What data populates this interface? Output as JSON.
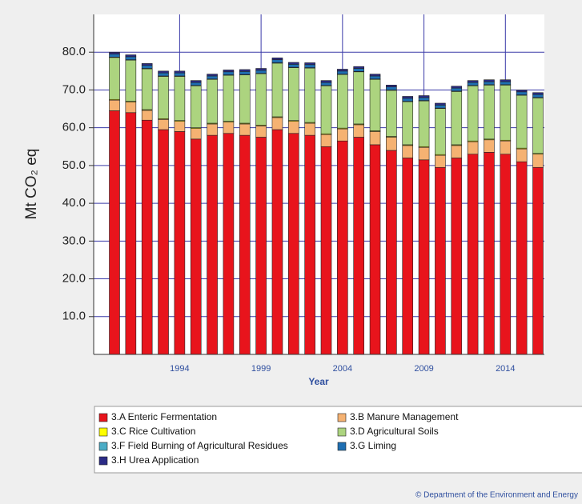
{
  "chart_data": {
    "type": "bar",
    "stacked": true,
    "ylabel": "Mt CO₂ eq",
    "xlabel": "Year",
    "credit": "© Department of the Environment and Energy",
    "categories": [
      null,
      null,
      null,
      null,
      "1994",
      null,
      null,
      null,
      null,
      "1999",
      null,
      null,
      null,
      null,
      "2004",
      null,
      null,
      null,
      null,
      "2009",
      null,
      null,
      null,
      null,
      "2014",
      null,
      null
    ],
    "ylim": [
      0,
      90
    ],
    "yticks": [
      {
        "value": 10,
        "label": "10.0"
      },
      {
        "value": 20,
        "label": "20.0"
      },
      {
        "value": 30,
        "label": "30.0"
      },
      {
        "value": 40,
        "label": "40.0"
      },
      {
        "value": 50,
        "label": "50.0"
      },
      {
        "value": 60,
        "label": "60.0"
      },
      {
        "value": 70,
        "label": "70.0"
      },
      {
        "value": 80,
        "label": "80.0"
      }
    ],
    "grid": true,
    "series": [
      {
        "name": "3.A Enteric Fermentation",
        "color": "#e8141c",
        "values": [
          64.5,
          64,
          62,
          59.5,
          59,
          57,
          58,
          58.5,
          58,
          57.5,
          59.5,
          58.5,
          58,
          55,
          56.5,
          57.5,
          55.5,
          54,
          52,
          51.5,
          49.5,
          52,
          53,
          53.5,
          53,
          51,
          49.5
        ]
      },
      {
        "name": "3.B Manure Management",
        "color": "#f5b272",
        "values": [
          2.8,
          2.8,
          2.6,
          2.7,
          2.7,
          2.8,
          3,
          3,
          3,
          3,
          3.2,
          3.2,
          3.2,
          3.2,
          3.2,
          3.3,
          3.5,
          3.5,
          3.3,
          3.3,
          3.2,
          3.3,
          3.3,
          3.3,
          3.5,
          3.4,
          3.5
        ]
      },
      {
        "name": "3.C Rice Cultivation",
        "color": "#ffff00",
        "values": [
          0.2,
          0.2,
          0.2,
          0.2,
          0.2,
          0.2,
          0.2,
          0.2,
          0.2,
          0.2,
          0.2,
          0.2,
          0.2,
          0.2,
          0.2,
          0.2,
          0.2,
          0.2,
          0.2,
          0.2,
          0.2,
          0.2,
          0.2,
          0.2,
          0.2,
          0.2,
          0.2
        ]
      },
      {
        "name": "3.D Agricultural Soils",
        "color": "#acd47f",
        "values": [
          11.1,
          10.9,
          10.8,
          11.2,
          11.7,
          11.1,
          11.6,
          12.2,
          12.8,
          13.6,
          14.2,
          14,
          14.4,
          12.7,
          14.2,
          13.8,
          13.6,
          12.2,
          11.4,
          12.1,
          12.2,
          14.1,
          14.6,
          14.3,
          14.6,
          14,
          14.7
        ]
      },
      {
        "name": "3.F Field Burning of Agricultural Residues",
        "color": "#4bacc6",
        "values": [
          0.1,
          0.1,
          0.1,
          0.1,
          0.1,
          0.1,
          0.1,
          0.1,
          0.1,
          0.1,
          0.1,
          0.1,
          0.1,
          0.1,
          0.1,
          0.1,
          0.1,
          0.1,
          0.1,
          0.1,
          0.1,
          0.1,
          0.1,
          0.1,
          0.1,
          0.1,
          0.1
        ]
      },
      {
        "name": "3.G Liming",
        "color": "#1f6fb2",
        "values": [
          0.8,
          0.8,
          0.8,
          0.8,
          0.8,
          0.8,
          0.8,
          0.8,
          0.8,
          0.8,
          0.8,
          0.8,
          0.8,
          0.8,
          0.8,
          0.8,
          0.8,
          0.8,
          0.8,
          0.8,
          0.8,
          0.8,
          0.8,
          0.8,
          0.8,
          0.8,
          0.8
        ]
      },
      {
        "name": "3.H Urea Application",
        "color": "#2b2b86",
        "values": [
          0.5,
          0.5,
          0.5,
          0.5,
          0.5,
          0.5,
          0.5,
          0.5,
          0.5,
          0.5,
          0.5,
          0.5,
          0.5,
          0.5,
          0.5,
          0.5,
          0.5,
          0.5,
          0.5,
          0.5,
          0.5,
          0.5,
          0.5,
          0.5,
          0.5,
          0.5,
          0.5
        ]
      }
    ]
  }
}
